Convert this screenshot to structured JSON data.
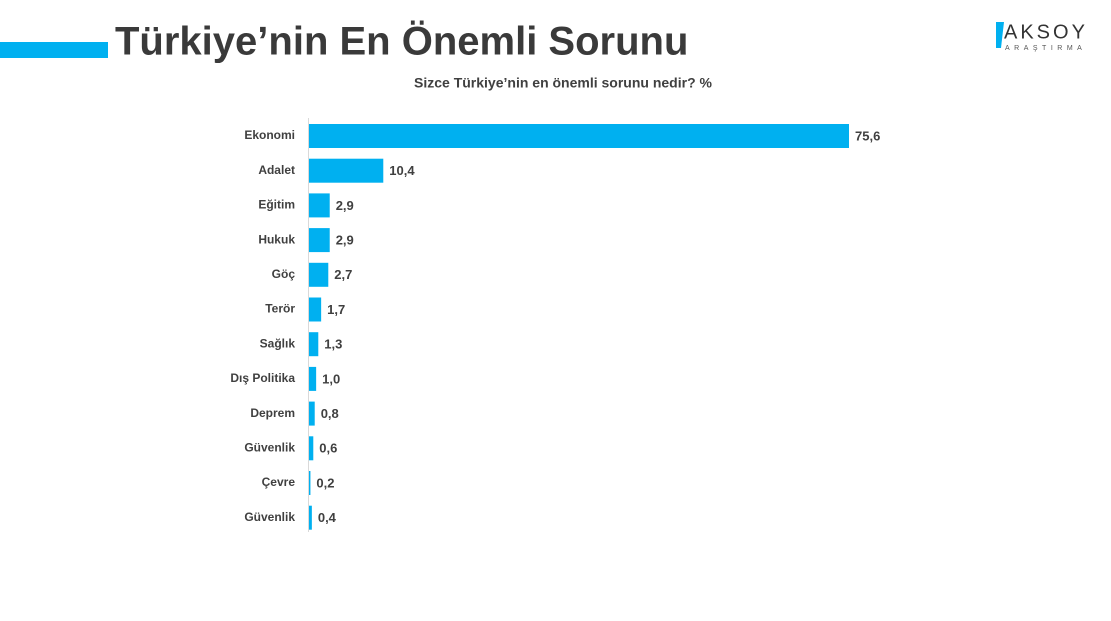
{
  "logo": {
    "name": "AKSOY",
    "sub": "ARAŞTIRMA"
  },
  "chart_data": {
    "type": "bar",
    "orientation": "horizontal",
    "title": "Türkiye’nin En Önemli Sorunu",
    "subtitle": "Sizce Türkiye’nin en önemli sorunu nedir? %",
    "categories": [
      "Ekonomi",
      "Adalet",
      "Eğitim",
      "Hukuk",
      "Göç",
      "Terör",
      "Sağlık",
      "Dış Politika",
      "Deprem",
      "Güvenlik",
      "Çevre",
      "Güvenlik"
    ],
    "values": [
      75.6,
      10.4,
      2.9,
      2.9,
      2.7,
      1.7,
      1.3,
      1.0,
      0.8,
      0.6,
      0.2,
      0.4
    ],
    "value_labels": [
      "75,6",
      "10,4",
      "2,9",
      "2,9",
      "2,7",
      "1,7",
      "1,3",
      "1,0",
      "0,8",
      "0,6",
      "0,2",
      "0,4"
    ],
    "color": "#00b0f0"
  }
}
